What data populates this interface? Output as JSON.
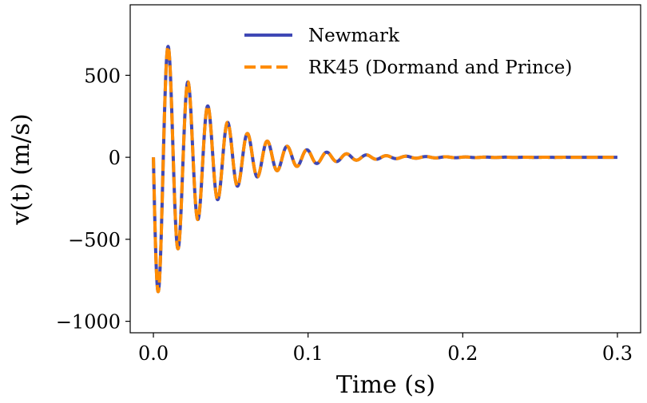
{
  "chart_data": {
    "type": "line",
    "title": "",
    "xlabel": "Time (s)",
    "ylabel": "v(t) (m/s)",
    "xlim": [
      -0.015,
      0.315
    ],
    "ylim": [
      -1070,
      930
    ],
    "xticks": [
      0.0,
      0.1,
      0.2,
      0.3
    ],
    "xtick_labels": [
      "0.0",
      "0.1",
      "0.2",
      "0.3"
    ],
    "yticks": [
      -1000,
      -500,
      0,
      500
    ],
    "ytick_labels": [
      "−1000",
      "−500",
      "0",
      "500"
    ],
    "grid": false,
    "legend_position": "top-right",
    "signal": {
      "description_of_shape": "damped oscillation",
      "t_start": 0.0,
      "t_end": 0.3,
      "frequency_hz": 78,
      "initial_amplitude": 900,
      "decay_rate": 30,
      "first_peak": 880,
      "first_trough": -980
    },
    "series": [
      {
        "name": "Newmark",
        "color": "#3f48b5",
        "style": "solid"
      },
      {
        "name": "RK45 (Dormand and Prince)",
        "color": "#ff8c00",
        "style": "dashed"
      }
    ]
  }
}
